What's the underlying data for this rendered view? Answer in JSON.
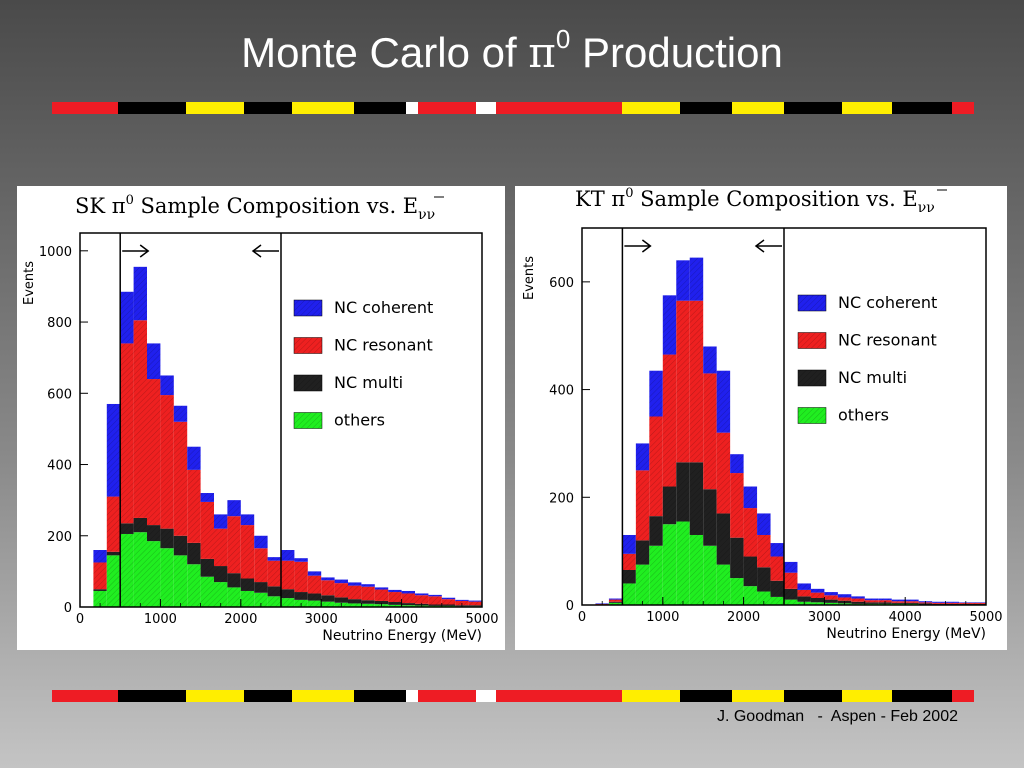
{
  "slide": {
    "title_prefix": "Monte Carlo of ",
    "title_pi": "π",
    "title_sup": "0",
    "title_suffix": " Production",
    "footer": "J. Goodman   -  Aspen - Feb 2002"
  },
  "colors": {
    "nc_coherent": "#2020ee",
    "nc_resonant": "#ee2020",
    "nc_multi": "#202020",
    "others": "#20ee20",
    "stripe_red": "#ee1c24",
    "stripe_black": "#000000",
    "stripe_yellow": "#ffee00",
    "stripe_white": "#ffffff"
  },
  "chart_data": [
    {
      "type": "bar",
      "stacked": true,
      "title_prefix": "SK π",
      "title_sup": "0",
      "title_main": "  Sample Composition vs. E",
      "title_sub": "νν",
      "xlabel": "Neutrino Energy (MeV)",
      "ylabel": "Events",
      "xlim": [
        0,
        5000
      ],
      "ylim": [
        0,
        1050
      ],
      "xticks": [
        0,
        1000,
        2000,
        3000,
        4000,
        5000
      ],
      "yticks": [
        0,
        200,
        400,
        600,
        800,
        1000
      ],
      "cuts": [
        500,
        2500
      ],
      "bin_width": 166.7,
      "bin_starts": [
        166.7,
        333.3,
        500,
        666.7,
        833.3,
        1000,
        1166.7,
        1333.3,
        1500,
        1666.7,
        1833.3,
        2000,
        2166.7,
        2333.3,
        2500,
        2666.7,
        2833.3,
        3000,
        3166.7,
        3333.3,
        3500,
        3666.7,
        3833.3,
        4000,
        4166.7,
        4333.3,
        4500,
        4666.7,
        4833.3
      ],
      "series": [
        {
          "name": "others",
          "values": [
            45,
            145,
            205,
            210,
            185,
            165,
            145,
            120,
            85,
            70,
            55,
            45,
            40,
            30,
            25,
            20,
            18,
            15,
            12,
            10,
            9,
            8,
            6,
            5,
            4,
            3,
            3,
            2,
            2
          ]
        },
        {
          "name": "NC multi",
          "values": [
            5,
            10,
            30,
            40,
            45,
            55,
            55,
            60,
            50,
            45,
            40,
            35,
            30,
            28,
            25,
            22,
            20,
            18,
            15,
            12,
            10,
            9,
            8,
            6,
            5,
            4,
            4,
            3,
            3
          ]
        },
        {
          "name": "NC resonant",
          "values": [
            75,
            155,
            505,
            555,
            410,
            375,
            320,
            205,
            160,
            105,
            160,
            150,
            95,
            72,
            80,
            85,
            50,
            42,
            40,
            38,
            38,
            32,
            28,
            27,
            24,
            23,
            15,
            12,
            10
          ]
        },
        {
          "name": "NC coherent",
          "values": [
            35,
            260,
            145,
            150,
            100,
            55,
            45,
            65,
            25,
            40,
            45,
            30,
            35,
            10,
            30,
            10,
            12,
            8,
            10,
            9,
            7,
            6,
            6,
            7,
            5,
            4,
            4,
            3,
            3
          ]
        }
      ],
      "legend": {
        "placement": "top-right",
        "entries": [
          "NC coherent",
          "NC resonant",
          "NC multi",
          "others"
        ]
      }
    },
    {
      "type": "bar",
      "stacked": true,
      "title_prefix": "KT π",
      "title_sup": "0",
      "title_main": "  Sample Composition vs. E",
      "title_sub": "νν",
      "xlabel": "Neutrino Energy (MeV)",
      "ylabel": "Events",
      "xlim": [
        0,
        5000
      ],
      "ylim": [
        0,
        700
      ],
      "xticks": [
        0,
        1000,
        2000,
        3000,
        4000,
        5000
      ],
      "yticks": [
        0,
        200,
        400,
        600
      ],
      "cuts": [
        500,
        2500
      ],
      "bin_width": 166.7,
      "bin_starts": [
        166.7,
        333.3,
        500,
        666.7,
        833.3,
        1000,
        1166.7,
        1333.3,
        1500,
        1666.7,
        1833.3,
        2000,
        2166.7,
        2333.3,
        2500,
        2666.7,
        2833.3,
        3000,
        3166.7,
        3333.3,
        3500,
        3666.7,
        3833.3,
        4000,
        4166.7,
        4333.3,
        4500,
        4666.7,
        4833.3
      ],
      "series": [
        {
          "name": "others",
          "values": [
            1,
            4,
            40,
            75,
            110,
            150,
            155,
            130,
            110,
            75,
            50,
            35,
            25,
            15,
            10,
            6,
            5,
            4,
            3,
            2,
            2,
            2,
            2,
            2,
            1,
            1,
            1,
            1,
            1
          ]
        },
        {
          "name": "NC multi",
          "values": [
            0,
            2,
            25,
            45,
            55,
            70,
            110,
            135,
            105,
            95,
            75,
            55,
            45,
            30,
            20,
            10,
            8,
            6,
            5,
            4,
            3,
            3,
            2,
            2,
            2,
            1,
            1,
            1,
            1
          ]
        },
        {
          "name": "NC resonant",
          "values": [
            1,
            4,
            30,
            130,
            185,
            245,
            300,
            300,
            215,
            150,
            120,
            90,
            60,
            45,
            30,
            12,
            10,
            8,
            6,
            6,
            4,
            4,
            3,
            3,
            2,
            2,
            2,
            2,
            2
          ]
        },
        {
          "name": "NC coherent",
          "values": [
            1,
            2,
            35,
            50,
            85,
            110,
            75,
            80,
            50,
            115,
            35,
            40,
            40,
            25,
            20,
            12,
            7,
            6,
            6,
            4,
            3,
            3,
            3,
            3,
            2,
            2,
            2,
            1,
            1
          ]
        }
      ],
      "legend": {
        "placement": "top-right",
        "entries": [
          "NC coherent",
          "NC resonant",
          "NC multi",
          "others"
        ]
      }
    }
  ]
}
